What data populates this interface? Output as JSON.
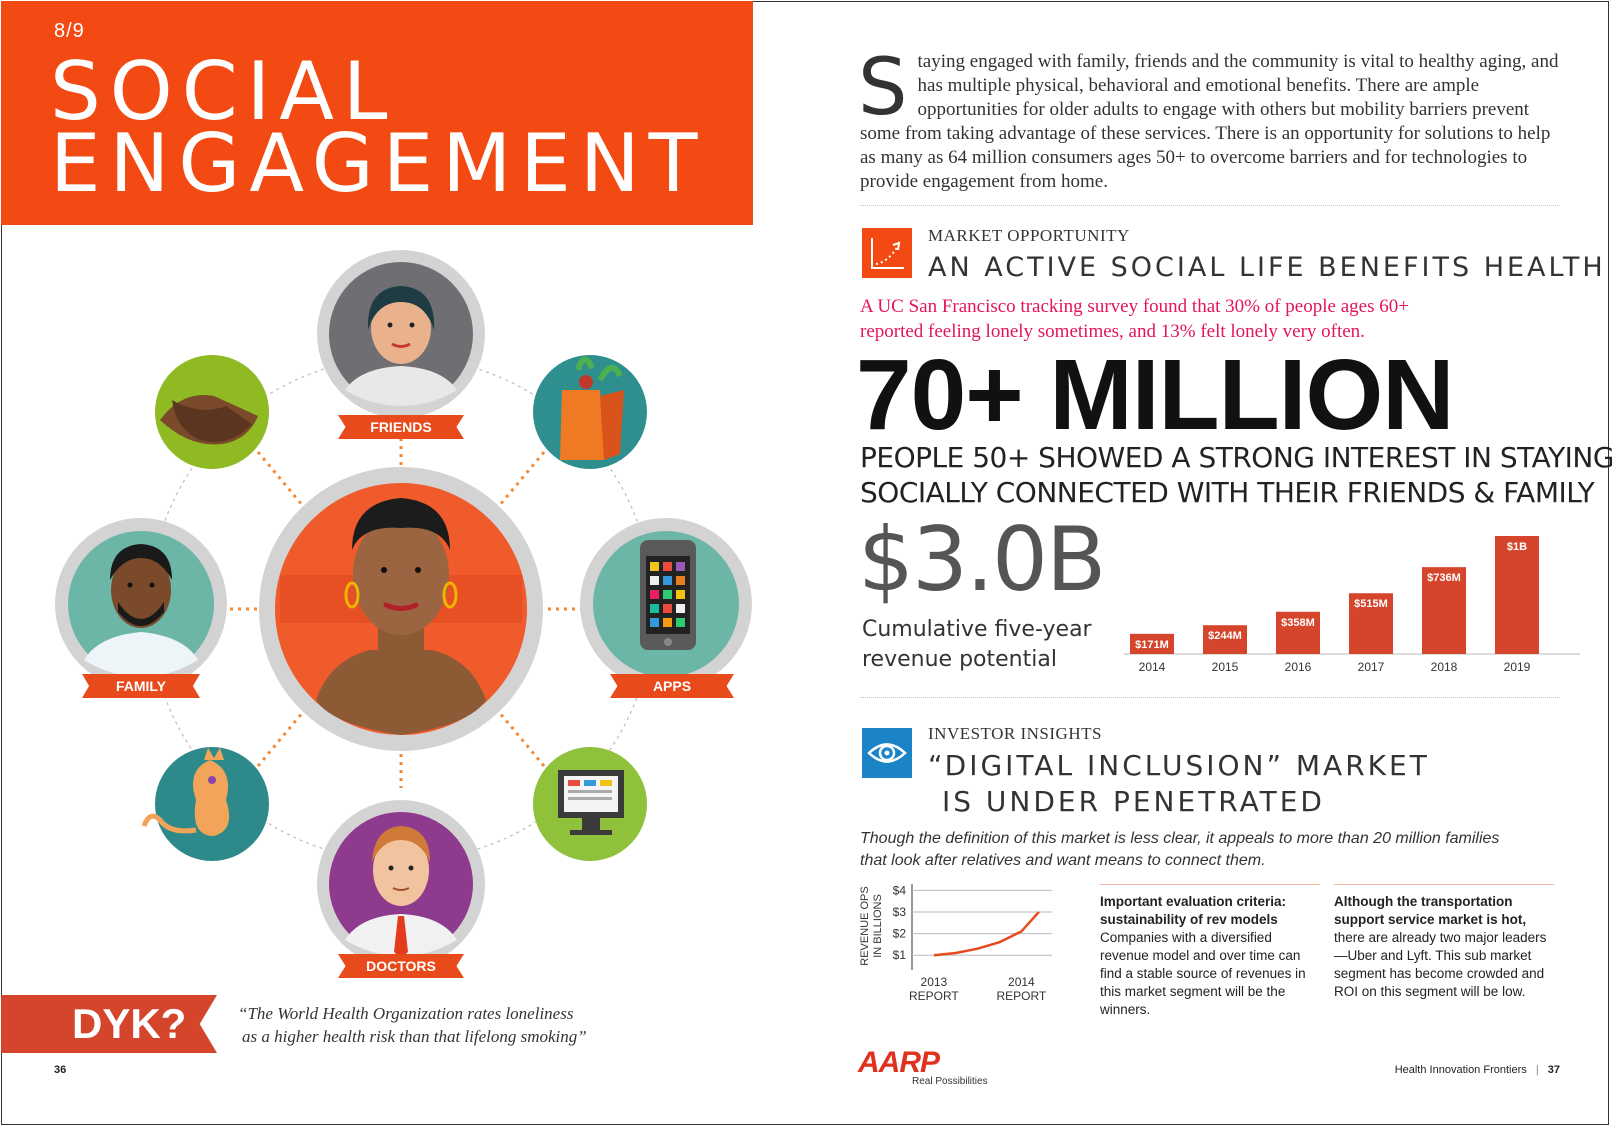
{
  "left_page": {
    "chapter": "8/9",
    "title_line1": "SOCIAL",
    "title_line2": "ENGAGEMENT",
    "labels": {
      "friends": "FRIENDS",
      "family": "FAMILY",
      "apps": "APPS",
      "doctors": "DOCTORS"
    },
    "dyk": "DYK?",
    "quote_line1": "“The World Health Organization rates loneliness",
    "quote_line2": "as a higher health risk than that lifelong smoking”",
    "page_number": "36",
    "colors": {
      "accent": "#f24a12",
      "ribbon": "#e84a1c",
      "dyk": "#d4452c"
    }
  },
  "right_page": {
    "intro_dropcap": "S",
    "intro_text": "taying engaged with family, friends and the community is vital to healthy aging, and has multiple physical, behavioral and emotional benefits. There are ample opportunities for older adults to engage with others but mobility barriers prevent some from taking advantage of these services. There is an opportunity for solutions to help as many as 64 million consumers ages 50+ to overcome barriers and for technologies to provide engagement from home.",
    "market": {
      "eyebrow": "MARKET OPPORTUNITY",
      "heading": "AN ACTIVE SOCIAL LIFE BENEFITS HEALTH",
      "pink_line1": "A UC San Francisco tracking survey found that 30% of people ages 60+",
      "pink_line2": "reported feeling lonely sometimes, and 13% felt lonely very often.",
      "big_stat": "70+ MILLION",
      "stat_line1": "PEOPLE 50+ SHOWED A STRONG INTEREST IN STAYING",
      "stat_line2": "SOCIALLY CONNECTED WITH THEIR FRIENDS & FAMILY",
      "revenue_total": "$3.0B",
      "revenue_caption_line1": "Cumulative five-year",
      "revenue_caption_line2": "revenue potential",
      "icon": "growth-chart-icon"
    },
    "investor": {
      "eyebrow": "INVESTOR INSIGHTS",
      "heading_line1": "“DIGITAL INCLUSION” MARKET",
      "heading_line2": "IS UNDER PENETRATED",
      "italic_line1": "Though the definition of this market is less clear, it appeals to more than 20 million families",
      "italic_line2": "that look after relatives and want means to connect them.",
      "col1_bold": "Important evaluation criteria: sustainability of rev models",
      "col1_text": "Companies with a diversified revenue model and over time can find a stable source of revenues in this market segment will be the winners.",
      "col2_bold": "Although the transportation support service market is hot,",
      "col2_text": "there are already two major leaders—Uber and Lyft. This sub market segment has become crowded and ROI on this segment will be low.",
      "icon": "eye-icon"
    },
    "logo": "AARP",
    "logo_tagline": "Real Possibilities",
    "footer_title": "Health Innovation Frontiers",
    "page_number": "37",
    "colors": {
      "accent": "#f24a12",
      "bar": "#d4452c",
      "pink": "#e5135d",
      "eye_box": "#1a84c7"
    }
  },
  "chart_data": [
    {
      "type": "bar",
      "categories": [
        "2014",
        "2015",
        "2016",
        "2017",
        "2018",
        "2019"
      ],
      "values": [
        171,
        244,
        358,
        515,
        736,
        1000
      ],
      "value_labels": [
        "$171M",
        "$244M",
        "$358M",
        "$515M",
        "$736M",
        "$1B"
      ],
      "ylabel": "",
      "xlabel": "",
      "ylim": [
        0,
        1000
      ],
      "grid": false
    },
    {
      "type": "line",
      "x": [
        2013,
        2013.25,
        2013.5,
        2013.75,
        2014,
        2014.2
      ],
      "x_tick_labels": [
        "2013\nREPORT",
        "2014\nREPORT"
      ],
      "y": [
        1.0,
        1.1,
        1.3,
        1.6,
        2.1,
        3.0
      ],
      "yticks": [
        "$1",
        "$2",
        "$3",
        "$4"
      ],
      "ylabel": "REVENUE OPS IN BILLIONS",
      "ylim": [
        0.5,
        4.2
      ],
      "grid": true
    }
  ]
}
